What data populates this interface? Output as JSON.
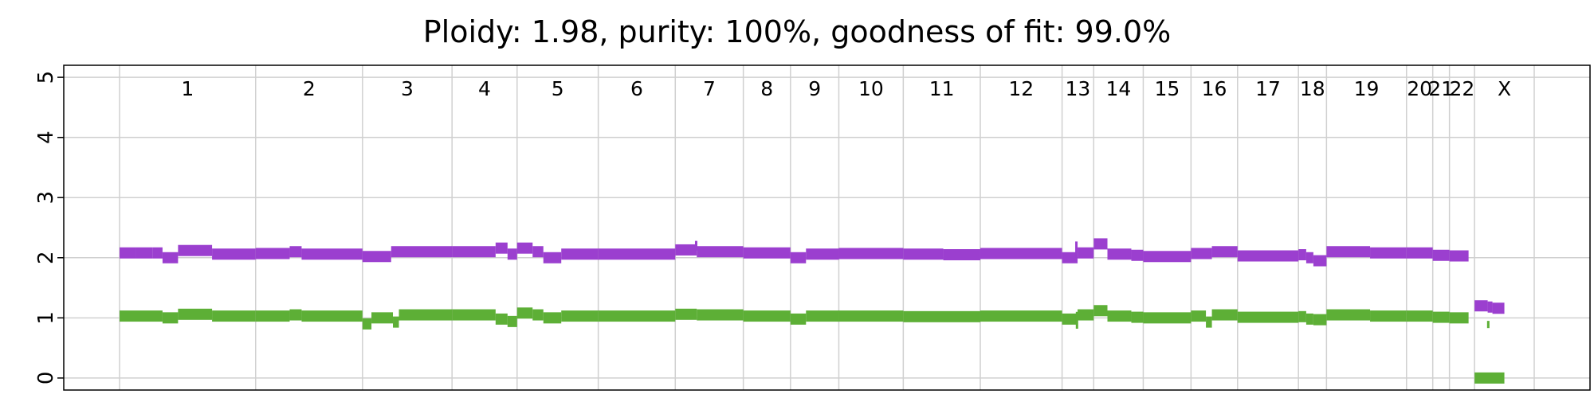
{
  "chart_data": {
    "type": "line",
    "title": "Ploidy: 1.98, purity: 100%, goodness of fit: 99.0%",
    "xlabel": "",
    "ylabel": "",
    "ylim": [
      -0.2,
      5.2
    ],
    "yticks": [
      0,
      1,
      2,
      3,
      4,
      5
    ],
    "grid": true,
    "colors": {
      "major": "#9b3fcf",
      "minor": "#5daf36",
      "grid": "#d0d0d0"
    },
    "chromosomes": [
      {
        "name": "1",
        "start": 0,
        "end": 2.28
      },
      {
        "name": "2",
        "start": 2.28,
        "end": 4.07
      },
      {
        "name": "3",
        "start": 4.07,
        "end": 5.57
      },
      {
        "name": "4",
        "start": 5.57,
        "end": 6.66
      },
      {
        "name": "5",
        "start": 6.66,
        "end": 8.02
      },
      {
        "name": "6",
        "start": 8.02,
        "end": 9.31
      },
      {
        "name": "7",
        "start": 9.31,
        "end": 10.45
      },
      {
        "name": "8",
        "start": 10.45,
        "end": 11.24
      },
      {
        "name": "9",
        "start": 11.24,
        "end": 12.05
      },
      {
        "name": "10",
        "start": 12.05,
        "end": 13.13
      },
      {
        "name": "11",
        "start": 13.13,
        "end": 14.42
      },
      {
        "name": "12",
        "start": 14.42,
        "end": 15.79
      },
      {
        "name": "13",
        "start": 15.79,
        "end": 16.32
      },
      {
        "name": "14",
        "start": 16.32,
        "end": 17.15
      },
      {
        "name": "15",
        "start": 17.15,
        "end": 17.95
      },
      {
        "name": "16",
        "start": 17.95,
        "end": 18.73
      },
      {
        "name": "17",
        "start": 18.73,
        "end": 19.75
      },
      {
        "name": "18",
        "start": 19.75,
        "end": 20.22
      },
      {
        "name": "19",
        "start": 20.22,
        "end": 21.56
      },
      {
        "name": "20",
        "start": 21.56,
        "end": 22.0
      },
      {
        "name": "21",
        "start": 22.0,
        "end": 22.28
      },
      {
        "name": "22",
        "start": 22.28,
        "end": 22.7
      },
      {
        "name": "X",
        "start": 22.7,
        "end": 23.7
      }
    ],
    "series": [
      {
        "color": "#9b3fcf",
        "segments": [
          [
            0.0,
            0.28,
            2.08
          ],
          [
            0.28,
            0.55,
            2.08
          ],
          [
            0.55,
            0.72,
            2.08
          ],
          [
            0.72,
            0.98,
            2.0
          ],
          [
            0.98,
            1.55,
            2.12
          ],
          [
            1.55,
            2.28,
            2.06
          ],
          [
            2.28,
            2.85,
            2.07
          ],
          [
            2.85,
            3.05,
            2.1
          ],
          [
            3.05,
            4.07,
            2.06
          ],
          [
            4.07,
            4.55,
            2.02
          ],
          [
            4.55,
            5.57,
            2.1
          ],
          [
            5.57,
            6.3,
            2.1
          ],
          [
            6.3,
            6.5,
            2.16
          ],
          [
            6.5,
            6.66,
            2.06
          ],
          [
            6.66,
            6.92,
            2.16
          ],
          [
            6.92,
            7.1,
            2.1
          ],
          [
            7.1,
            7.4,
            2.0
          ],
          [
            7.4,
            8.02,
            2.06
          ],
          [
            8.02,
            9.31,
            2.06
          ],
          [
            9.31,
            9.67,
            2.13
          ],
          [
            9.67,
            10.45,
            2.1
          ],
          [
            10.45,
            11.24,
            2.08
          ],
          [
            11.24,
            11.5,
            2.0
          ],
          [
            11.5,
            12.05,
            2.06
          ],
          [
            12.05,
            13.13,
            2.07
          ],
          [
            13.13,
            13.8,
            2.06
          ],
          [
            13.8,
            14.42,
            2.05
          ],
          [
            14.42,
            15.79,
            2.07
          ],
          [
            15.79,
            16.05,
            2.0
          ],
          [
            16.05,
            16.32,
            2.08
          ],
          [
            16.32,
            16.55,
            2.23
          ],
          [
            16.55,
            16.95,
            2.06
          ],
          [
            16.95,
            17.15,
            2.04
          ],
          [
            17.15,
            17.95,
            2.02
          ],
          [
            17.95,
            18.3,
            2.07
          ],
          [
            18.3,
            18.73,
            2.1
          ],
          [
            18.73,
            19.75,
            2.03
          ],
          [
            19.75,
            19.88,
            2.05
          ],
          [
            19.88,
            20.0,
            2.0
          ],
          [
            20.0,
            20.22,
            1.95
          ],
          [
            20.22,
            20.95,
            2.1
          ],
          [
            20.95,
            21.56,
            2.08
          ],
          [
            21.56,
            22.0,
            2.08
          ],
          [
            22.0,
            22.28,
            2.04
          ],
          [
            22.28,
            22.6,
            2.03
          ],
          [
            22.7,
            22.92,
            1.2
          ],
          [
            22.92,
            23.0,
            1.18
          ],
          [
            23.0,
            23.2,
            1.16
          ]
        ],
        "spikes": [
          [
            9.66,
            2.12,
            2.28
          ],
          [
            16.03,
            2.0,
            2.27
          ]
        ]
      },
      {
        "color": "#5daf36",
        "segments": [
          [
            0.0,
            0.72,
            1.03
          ],
          [
            0.72,
            0.98,
            1.0
          ],
          [
            0.98,
            1.55,
            1.06
          ],
          [
            1.55,
            2.28,
            1.03
          ],
          [
            2.28,
            2.85,
            1.03
          ],
          [
            2.85,
            3.05,
            1.05
          ],
          [
            3.05,
            4.07,
            1.03
          ],
          [
            4.07,
            4.22,
            0.9
          ],
          [
            4.22,
            4.58,
            1.0
          ],
          [
            4.58,
            4.68,
            0.93
          ],
          [
            4.68,
            5.57,
            1.05
          ],
          [
            5.57,
            6.3,
            1.05
          ],
          [
            6.3,
            6.5,
            0.98
          ],
          [
            6.5,
            6.66,
            0.94
          ],
          [
            6.66,
            6.92,
            1.08
          ],
          [
            6.92,
            7.1,
            1.05
          ],
          [
            7.1,
            7.4,
            1.0
          ],
          [
            7.4,
            8.02,
            1.03
          ],
          [
            8.02,
            9.31,
            1.03
          ],
          [
            9.31,
            9.67,
            1.06
          ],
          [
            9.67,
            10.45,
            1.05
          ],
          [
            10.45,
            11.24,
            1.03
          ],
          [
            11.24,
            11.5,
            0.98
          ],
          [
            11.5,
            12.05,
            1.03
          ],
          [
            12.05,
            13.13,
            1.03
          ],
          [
            13.13,
            14.42,
            1.02
          ],
          [
            14.42,
            15.79,
            1.03
          ],
          [
            15.79,
            16.05,
            0.98
          ],
          [
            16.05,
            16.32,
            1.05
          ],
          [
            16.32,
            16.55,
            1.12
          ],
          [
            16.55,
            16.95,
            1.03
          ],
          [
            16.95,
            17.15,
            1.01
          ],
          [
            17.15,
            17.95,
            1.0
          ],
          [
            17.95,
            18.2,
            1.03
          ],
          [
            18.2,
            18.3,
            0.93
          ],
          [
            18.3,
            18.73,
            1.05
          ],
          [
            18.73,
            19.75,
            1.01
          ],
          [
            19.75,
            19.88,
            1.02
          ],
          [
            19.88,
            20.0,
            0.98
          ],
          [
            20.0,
            20.22,
            0.97
          ],
          [
            20.22,
            20.95,
            1.05
          ],
          [
            20.95,
            21.56,
            1.03
          ],
          [
            21.56,
            22.0,
            1.03
          ],
          [
            22.0,
            22.28,
            1.01
          ],
          [
            22.28,
            22.6,
            1.0
          ],
          [
            22.7,
            23.2,
            0.0
          ]
        ],
        "spikes": [
          [
            16.04,
            0.82,
            1.1
          ],
          [
            22.93,
            0.83,
            0.95
          ]
        ]
      }
    ]
  }
}
